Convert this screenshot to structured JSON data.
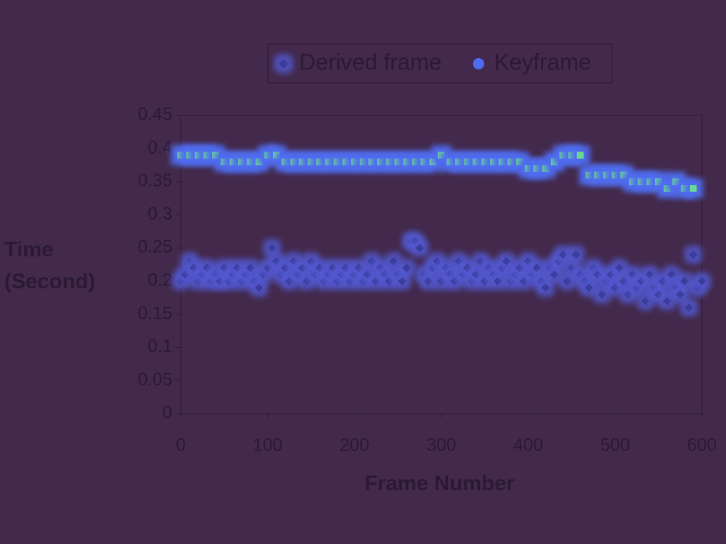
{
  "chart_data": {
    "type": "scatter",
    "xlabel": "Frame Number",
    "ylabel": "Time (Second)",
    "xlim": [
      0,
      600
    ],
    "xticks": [
      0,
      100,
      200,
      300,
      400,
      500,
      600
    ],
    "ylim": [
      0,
      0.45
    ],
    "yticks": [
      0,
      0.05,
      0.1,
      0.15,
      0.2,
      0.25,
      0.3,
      0.35,
      0.4,
      0.45
    ],
    "legend": "top",
    "series": [
      {
        "name": "Derived frame",
        "color": "#3a3c9c",
        "marker": "diamond",
        "x": [
          0,
          5,
          10,
          15,
          20,
          25,
          30,
          35,
          40,
          45,
          50,
          55,
          60,
          65,
          70,
          75,
          80,
          85,
          90,
          95,
          100,
          105,
          110,
          115,
          120,
          125,
          130,
          135,
          140,
          145,
          150,
          155,
          160,
          165,
          170,
          175,
          180,
          185,
          190,
          195,
          200,
          205,
          210,
          215,
          220,
          225,
          230,
          235,
          240,
          245,
          250,
          255,
          260,
          265,
          270,
          275,
          280,
          285,
          290,
          295,
          300,
          305,
          310,
          315,
          320,
          325,
          330,
          335,
          340,
          345,
          350,
          355,
          360,
          365,
          370,
          375,
          380,
          385,
          390,
          395,
          400,
          405,
          410,
          415,
          420,
          425,
          430,
          435,
          440,
          445,
          450,
          455,
          460,
          465,
          470,
          475,
          480,
          485,
          490,
          495,
          500,
          505,
          510,
          515,
          520,
          525,
          530,
          535,
          540,
          545,
          550,
          555,
          560,
          565,
          570,
          575,
          580,
          585,
          590,
          595,
          600
        ],
        "values": [
          0.2,
          0.21,
          0.23,
          0.22,
          0.2,
          0.21,
          0.22,
          0.2,
          0.21,
          0.2,
          0.22,
          0.2,
          0.21,
          0.22,
          0.2,
          0.21,
          0.22,
          0.2,
          0.19,
          0.21,
          0.22,
          0.25,
          0.23,
          0.21,
          0.22,
          0.2,
          0.23,
          0.21,
          0.22,
          0.2,
          0.23,
          0.21,
          0.22,
          0.2,
          0.21,
          0.22,
          0.2,
          0.21,
          0.22,
          0.2,
          0.21,
          0.22,
          0.2,
          0.21,
          0.23,
          0.2,
          0.22,
          0.21,
          0.2,
          0.23,
          0.21,
          0.2,
          0.22,
          0.26,
          0.26,
          0.25,
          0.21,
          0.2,
          0.22,
          0.23,
          0.2,
          0.22,
          0.21,
          0.2,
          0.23,
          0.21,
          0.22,
          0.2,
          0.21,
          0.23,
          0.2,
          0.22,
          0.21,
          0.2,
          0.22,
          0.23,
          0.2,
          0.21,
          0.22,
          0.2,
          0.23,
          0.21,
          0.22,
          0.2,
          0.19,
          0.22,
          0.21,
          0.23,
          0.24,
          0.2,
          0.22,
          0.24,
          0.21,
          0.2,
          0.19,
          0.22,
          0.21,
          0.18,
          0.2,
          0.21,
          0.19,
          0.22,
          0.2,
          0.18,
          0.21,
          0.19,
          0.2,
          0.17,
          0.21,
          0.19,
          0.18,
          0.2,
          0.17,
          0.21,
          0.19,
          0.18,
          0.2,
          0.16,
          0.24,
          0.19,
          0.2
        ]
      },
      {
        "name": "Keyframe",
        "color": "#6ad890",
        "marker": "circle",
        "x": [
          0,
          10,
          20,
          30,
          40,
          50,
          60,
          70,
          80,
          90,
          100,
          110,
          120,
          130,
          140,
          150,
          160,
          170,
          180,
          190,
          200,
          210,
          220,
          230,
          240,
          250,
          260,
          270,
          280,
          290,
          300,
          310,
          320,
          330,
          340,
          350,
          360,
          370,
          380,
          390,
          400,
          410,
          420,
          430,
          440,
          450,
          460,
          470,
          480,
          490,
          500,
          510,
          520,
          530,
          540,
          550,
          560,
          570,
          580,
          590
        ],
        "values": [
          0.39,
          0.39,
          0.39,
          0.39,
          0.39,
          0.38,
          0.38,
          0.38,
          0.38,
          0.38,
          0.39,
          0.39,
          0.38,
          0.38,
          0.38,
          0.38,
          0.38,
          0.38,
          0.38,
          0.38,
          0.38,
          0.38,
          0.38,
          0.38,
          0.38,
          0.38,
          0.38,
          0.38,
          0.38,
          0.38,
          0.39,
          0.38,
          0.38,
          0.38,
          0.38,
          0.38,
          0.38,
          0.38,
          0.38,
          0.38,
          0.37,
          0.37,
          0.37,
          0.38,
          0.39,
          0.39,
          0.39,
          0.36,
          0.36,
          0.36,
          0.36,
          0.36,
          0.35,
          0.35,
          0.35,
          0.35,
          0.34,
          0.35,
          0.34,
          0.34
        ]
      }
    ]
  }
}
